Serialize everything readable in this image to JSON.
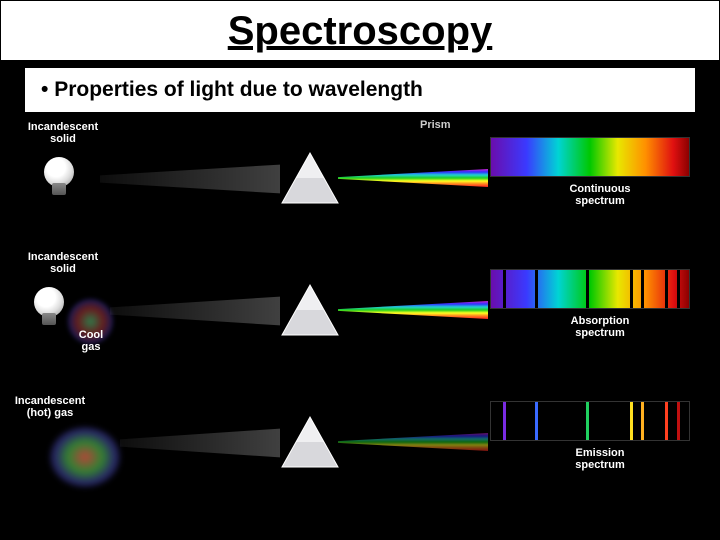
{
  "title": "Spectroscopy",
  "subtitle": "Properties of light due to wavelength",
  "prism_label": "Prism",
  "rows": [
    {
      "source_label": "Incandescent\nsolid",
      "spectrum_label": "Continuous\nspectrum",
      "spectrum_type": "continuous"
    },
    {
      "source_label": "Incandescent\nsolid",
      "gas_label": "Cool\ngas",
      "spectrum_label": "Absorption\nspectrum",
      "spectrum_type": "absorption",
      "absorption_lines_pct": [
        6,
        22,
        48,
        70,
        76,
        88,
        94
      ]
    },
    {
      "source_label": "Incandescent\n(hot) gas",
      "spectrum_label": "Emission\nspectrum",
      "spectrum_type": "emission",
      "emission_lines": [
        {
          "pos_pct": 6,
          "color": "#7a2be2"
        },
        {
          "pos_pct": 22,
          "color": "#3a6aff"
        },
        {
          "pos_pct": 48,
          "color": "#20d060"
        },
        {
          "pos_pct": 70,
          "color": "#ffe020"
        },
        {
          "pos_pct": 76,
          "color": "#ffb020"
        },
        {
          "pos_pct": 88,
          "color": "#ff4020"
        },
        {
          "pos_pct": 94,
          "color": "#c01010"
        }
      ]
    }
  ],
  "colors": {
    "background": "#000000",
    "text_light": "#ffffff",
    "text_dark": "#000000"
  }
}
